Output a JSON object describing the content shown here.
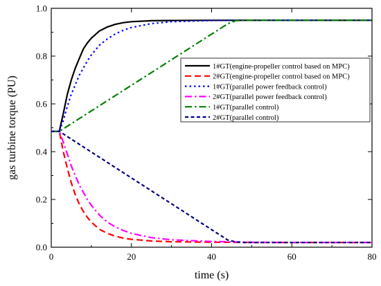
{
  "chart_data": {
    "type": "line",
    "xlabel": "time (s)",
    "ylabel": "gas turbine torque (PU)",
    "xlim": [
      0,
      80
    ],
    "ylim": [
      0.0,
      1.0
    ],
    "xticks": [
      "0",
      "20",
      "40",
      "60",
      "80"
    ],
    "yticks": [
      "0.0",
      "0.2",
      "0.4",
      "0.6",
      "0.8",
      "1.0"
    ],
    "grid": false,
    "legend_position": "right-center",
    "series": [
      {
        "name": "1#GT(engine-propeller control based on MPC)",
        "color": "#000000",
        "style": "solid",
        "x": [
          0,
          2,
          3,
          4,
          5,
          6,
          7,
          8,
          9,
          10,
          12,
          14,
          16,
          18,
          20,
          25,
          30,
          40,
          50,
          60,
          70,
          80
        ],
        "y": [
          0.485,
          0.485,
          0.56,
          0.64,
          0.7,
          0.75,
          0.79,
          0.83,
          0.855,
          0.875,
          0.905,
          0.922,
          0.933,
          0.94,
          0.944,
          0.948,
          0.949,
          0.95,
          0.95,
          0.95,
          0.95,
          0.95
        ]
      },
      {
        "name": "2#GT(engine-propeller control based on MPC)",
        "color": "#ff0000",
        "style": "dash",
        "x": [
          0,
          2,
          3,
          4,
          5,
          6,
          7,
          8,
          9,
          10,
          12,
          14,
          16,
          18,
          20,
          25,
          30,
          40,
          50,
          60,
          70,
          80
        ],
        "y": [
          0.485,
          0.485,
          0.4,
          0.33,
          0.27,
          0.22,
          0.18,
          0.15,
          0.125,
          0.105,
          0.075,
          0.058,
          0.046,
          0.038,
          0.033,
          0.026,
          0.023,
          0.021,
          0.02,
          0.02,
          0.02,
          0.02
        ]
      },
      {
        "name": "1#GT(parallel power feedback control)",
        "color": "#0000ff",
        "style": "dot",
        "x": [
          0,
          2,
          3,
          4,
          5,
          6,
          7,
          8,
          9,
          10,
          12,
          14,
          16,
          18,
          20,
          25,
          30,
          40,
          50,
          60,
          70,
          80
        ],
        "y": [
          0.485,
          0.485,
          0.53,
          0.59,
          0.64,
          0.68,
          0.72,
          0.75,
          0.78,
          0.805,
          0.845,
          0.872,
          0.893,
          0.908,
          0.92,
          0.936,
          0.944,
          0.949,
          0.95,
          0.95,
          0.95,
          0.95
        ]
      },
      {
        "name": "2#GT(parallel power feedback control)",
        "color": "#ff00ff",
        "style": "dashdot",
        "x": [
          0,
          2,
          3,
          4,
          5,
          6,
          7,
          8,
          9,
          10,
          12,
          14,
          16,
          18,
          20,
          25,
          30,
          40,
          50,
          60,
          70,
          80
        ],
        "y": [
          0.485,
          0.485,
          0.44,
          0.39,
          0.34,
          0.3,
          0.26,
          0.23,
          0.2,
          0.175,
          0.135,
          0.105,
          0.085,
          0.07,
          0.058,
          0.04,
          0.031,
          0.024,
          0.021,
          0.02,
          0.02,
          0.02
        ]
      },
      {
        "name": "1#GT(parallel control)",
        "color": "#008000",
        "style": "dashdot",
        "x": [
          0,
          2,
          44,
          46,
          48,
          50,
          60,
          70,
          80
        ],
        "y": [
          0.485,
          0.485,
          0.935,
          0.948,
          0.95,
          0.95,
          0.95,
          0.95,
          0.95
        ]
      },
      {
        "name": "2#GT(parallel control)",
        "color": "#000080",
        "style": "shortdash",
        "x": [
          0,
          2,
          44,
          46,
          48,
          50,
          60,
          70,
          80
        ],
        "y": [
          0.485,
          0.485,
          0.03,
          0.022,
          0.02,
          0.02,
          0.02,
          0.02,
          0.02
        ]
      }
    ]
  }
}
